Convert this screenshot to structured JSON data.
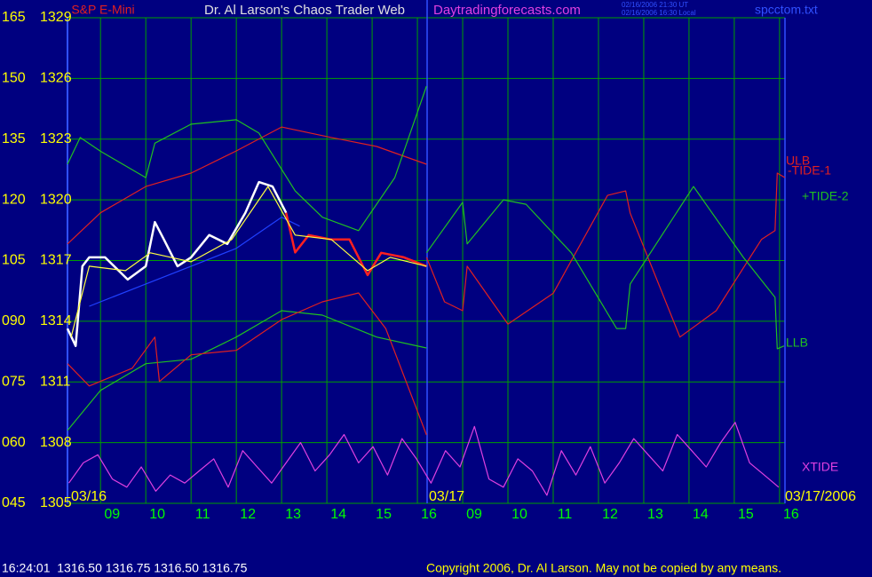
{
  "chart_data": {
    "type": "line",
    "symbol": "S&P E-Mini",
    "title": "Dr. Al Larson's Chaos Trader Web",
    "subtitle": "Daytradingforecasts.com",
    "timestamps": [
      "02/16/2006 21:30 UT",
      "02/16/2006 16:30 Local"
    ],
    "file": "spcctom.txt",
    "dates": [
      "03/16",
      "03/17",
      "03/17/2006"
    ],
    "status": "16:24:01  1316.50 1316.75 1316.50 1316.75",
    "copyright": "Copyright 2006, Dr. Al Larson. May not be copied by any means.",
    "grid": true,
    "xlim": [
      8.27,
      24.12
    ],
    "xticks": [
      {
        "value": 9,
        "label": "09"
      },
      10,
      11,
      12,
      13,
      14,
      15,
      16,
      {
        "value": 17,
        "label": "09"
      },
      {
        "value": 18,
        "label": "10"
      },
      {
        "value": 19,
        "label": "11"
      },
      {
        "value": 20,
        "label": "12"
      },
      {
        "value": 21,
        "label": "13"
      },
      {
        "value": 22,
        "label": "14"
      },
      {
        "value": 23,
        "label": "15"
      },
      {
        "value": 24,
        "label": "16"
      }
    ],
    "ylim": [
      45,
      165
    ],
    "yticks": [
      165,
      150,
      135,
      120,
      105,
      {
        "value": 90,
        "label": "090"
      },
      {
        "value": 75,
        "label": "075"
      },
      {
        "value": 60,
        "label": "060"
      },
      {
        "value": 45,
        "label": "045"
      }
    ],
    "y2lim": [
      1305,
      1329
    ],
    "y2ticks": [
      1329,
      1326,
      1323,
      1320,
      1317,
      1314,
      1311,
      1308,
      1305
    ],
    "series": [
      {
        "name": "ULB",
        "color": "#e02020",
        "x": [
          8.27,
          9,
          10,
          11,
          12,
          13,
          14.1,
          15.1,
          16.2
        ],
        "values": [
          109.1,
          116.8,
          123.3,
          126.6,
          132.1,
          138,
          135.4,
          133.2,
          128.8
        ]
      },
      {
        "name": "-TIDE-1",
        "color": "#e02020",
        "x": [
          16.2,
          16.6,
          17,
          17.1,
          18,
          19,
          20.2,
          20.6,
          20.7,
          21.8,
          22.6,
          23.6,
          23.9,
          23.95,
          24.12
        ],
        "values": [
          105.8,
          94.8,
          92.6,
          103.6,
          89.3,
          96.9,
          121.1,
          122.2,
          116.7,
          86.1,
          92.6,
          110.2,
          112.4,
          126.6,
          125.5
        ]
      },
      {
        "name": "+TIDE-2",
        "color": "#20c020",
        "x": [
          16.2,
          17,
          17.1,
          17.9,
          18.4,
          19.4,
          20.4,
          20.6,
          20.7,
          22.1,
          23.2,
          23.9,
          23.95,
          24.1
        ],
        "values": [
          106.9,
          119.4,
          109.1,
          120,
          118.9,
          106.9,
          88.2,
          88.2,
          99.2,
          123.3,
          105.8,
          95.9,
          83.2,
          83.9
        ]
      },
      {
        "name": "LLB",
        "color": "#20c020",
        "x": [
          8.27,
          9,
          10,
          11,
          12,
          13,
          13.9,
          15.1,
          16.2
        ],
        "values": [
          63,
          72.9,
          79.5,
          80.6,
          86.1,
          92.6,
          91.5,
          86.1,
          83.4
        ]
      },
      {
        "name": "XTIDE",
        "color": "#e040e0",
        "x": [
          8.3,
          8.62,
          8.94,
          9.26,
          9.58,
          9.9,
          10.22,
          10.54,
          10.86,
          11.18,
          11.5,
          11.82,
          12.14,
          12.46,
          12.78,
          13.1,
          13.42,
          13.74,
          14.06,
          14.38,
          14.7,
          15.02,
          15.34,
          15.66,
          15.98,
          16.3,
          16.62,
          16.94,
          17.26,
          17.58,
          17.9,
          18.22,
          18.54,
          18.86,
          19.18,
          19.5,
          19.82,
          20.14,
          20.46,
          20.78,
          21.1,
          21.42,
          21.74,
          22.06,
          22.38,
          22.7,
          23.02,
          23.34,
          23.66,
          23.98
        ],
        "values": [
          50,
          55,
          57,
          51,
          49,
          54,
          48,
          52,
          50,
          53,
          56,
          49,
          58,
          54,
          50,
          55,
          60,
          53,
          57,
          62,
          55,
          59,
          52,
          61,
          56,
          50,
          58,
          54,
          64,
          51,
          49,
          56,
          53,
          47,
          58,
          52,
          59,
          50,
          55,
          61,
          57,
          53,
          62,
          58,
          54,
          60,
          65,
          55,
          52,
          49
        ]
      },
      {
        "color": "#20c020",
        "x": [
          8.27,
          8.55,
          9,
          10,
          10.2,
          11,
          12,
          12.5,
          13.3,
          13.9,
          14.7,
          15.5,
          16.2
        ],
        "values": [
          128.8,
          135.4,
          132,
          125.5,
          134,
          138.7,
          139.8,
          136.5,
          122.2,
          115.7,
          112.4,
          125.5,
          148.1
        ]
      },
      {
        "color": "#e02020",
        "x": [
          8.27,
          8.75,
          9.7,
          10.2,
          10.3,
          11,
          12,
          13,
          13.9,
          14.7,
          15.3,
          15.9,
          16.2
        ],
        "values": [
          79.5,
          74,
          78.4,
          86.1,
          75.1,
          81.7,
          82.8,
          90.4,
          94.8,
          97,
          88.2,
          70.7,
          61.9
        ]
      },
      {
        "color": "#2040ff",
        "x": [
          8.75,
          10,
          11,
          12,
          13,
          13.4
        ],
        "values": [
          93.7,
          99.2,
          103.6,
          108,
          115.7,
          113.5
        ]
      },
      {
        "color": "#ffffff",
        "x": [
          8.27,
          8.45,
          8.6,
          8.75,
          9.1,
          9.6,
          10,
          10.2,
          10.4,
          10.7,
          11,
          11.4,
          11.8,
          12.2,
          12.5,
          12.8,
          13.1
        ],
        "values": [
          88.2,
          83.9,
          103.6,
          105.8,
          105.8,
          100.3,
          103.6,
          114.5,
          110.2,
          103.6,
          105.8,
          111.3,
          109.1,
          116.8,
          124.4,
          123.3,
          116.8
        ]
      },
      {
        "color": "#ff2020",
        "x": [
          13.1,
          13.3,
          13.6,
          14.1,
          14.5,
          14.9,
          15.2,
          15.7,
          16.2
        ],
        "values": [
          116.8,
          107,
          111.3,
          110.2,
          110.2,
          101.4,
          106.9,
          105.8,
          103.6
        ]
      },
      {
        "color": "#ffff40",
        "x": [
          8.35,
          8.75,
          9.55,
          10.1,
          11,
          11.9,
          12.7,
          13.3,
          14.1,
          14.9,
          15.4,
          16.2
        ],
        "values": [
          86.1,
          103.6,
          102.5,
          106.9,
          104.7,
          110.2,
          123.3,
          111.3,
          110.2,
          102.5,
          105.8,
          103.6
        ]
      }
    ]
  }
}
